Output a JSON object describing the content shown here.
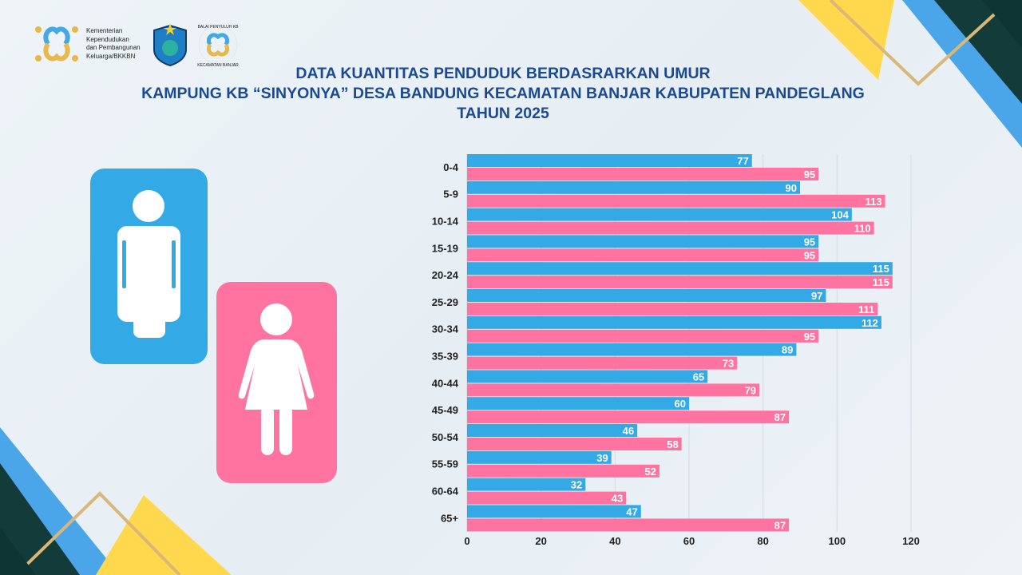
{
  "header": {
    "org_name_lines": [
      "Kementerian",
      "Kependudukan",
      "dan Pembangunan",
      "Keluarga/BKKBN"
    ],
    "round_logo_text": [
      "BALAI PENYULUH KB",
      "KECAMATAN BANJAR"
    ],
    "title_lines": [
      "DATA KUANTITAS PENDUDUK BERDASRARKAN UMUR",
      "KAMPUNG KB  “SINYONYA” DESA BANDUNG KECAMATAN BANJAR KABUPATEN PANDEGLANG",
      "TAHUN 2025"
    ]
  },
  "icons": {
    "male": "male-figure-icon",
    "female": "female-figure-icon"
  },
  "colors": {
    "male": "#33a9e5",
    "female": "#ff73a0",
    "title": "#1b4a93"
  },
  "chart_data": {
    "type": "bar",
    "orientation": "horizontal",
    "categories": [
      "0-4",
      "5-9",
      "10-14",
      "15-19",
      "20-24",
      "25-29",
      "30-34",
      "35-39",
      "40-44",
      "45-49",
      "50-54",
      "55-59",
      "60-64",
      "65+"
    ],
    "series": [
      {
        "color": "#33a9e5",
        "values": [
          77,
          90,
          104,
          95,
          115,
          97,
          112,
          89,
          65,
          60,
          46,
          39,
          32,
          47
        ]
      },
      {
        "color": "#ff73a0",
        "values": [
          95,
          113,
          110,
          95,
          115,
          111,
          95,
          73,
          79,
          87,
          58,
          52,
          43,
          87
        ]
      }
    ],
    "xlim": [
      0,
      120
    ],
    "xticks": [
      "0",
      "20",
      "40",
      "60",
      "80",
      "100",
      "120"
    ],
    "grid": true,
    "data_labels": true
  }
}
